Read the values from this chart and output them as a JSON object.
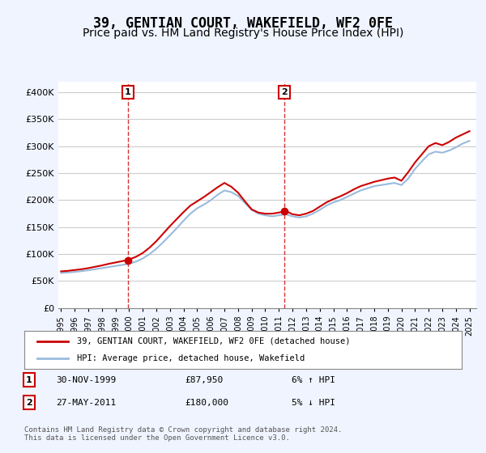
{
  "title": "39, GENTIAN COURT, WAKEFIELD, WF2 0FE",
  "subtitle": "Price paid vs. HM Land Registry's House Price Index (HPI)",
  "title_fontsize": 12,
  "subtitle_fontsize": 10,
  "ylabel": "",
  "xlabel": "",
  "ylim": [
    0,
    420000
  ],
  "yticks": [
    0,
    50000,
    100000,
    150000,
    200000,
    250000,
    300000,
    350000,
    400000
  ],
  "ytick_labels": [
    "£0",
    "£50K",
    "£100K",
    "£150K",
    "£200K",
    "£250K",
    "£300K",
    "£350K",
    "£400K"
  ],
  "bg_color": "#f0f4ff",
  "plot_bg_color": "#ffffff",
  "grid_color": "#cccccc",
  "line1_color": "#cc0000",
  "line2_color": "#99bbdd",
  "marker_color": "#cc0000",
  "vline_color": "#cc0000",
  "marker1_x": 1999.917,
  "marker1_y": 87950,
  "marker2_x": 2011.4,
  "marker2_y": 180000,
  "transaction1": {
    "num": "1",
    "date": "30-NOV-1999",
    "price": "£87,950",
    "hpi": "6% ↑ HPI"
  },
  "transaction2": {
    "num": "2",
    "date": "27-MAY-2011",
    "price": "£180,000",
    "hpi": "5% ↓ HPI"
  },
  "legend1": "39, GENTIAN COURT, WAKEFIELD, WF2 0FE (detached house)",
  "legend2": "HPI: Average price, detached house, Wakefield",
  "footer": "Contains HM Land Registry data © Crown copyright and database right 2024.\nThis data is licensed under the Open Government Licence v3.0.",
  "hpi_x": [
    1995,
    1995.5,
    1996,
    1996.5,
    1997,
    1997.5,
    1998,
    1998.5,
    1999,
    1999.5,
    2000,
    2000.5,
    2001,
    2001.5,
    2002,
    2002.5,
    2003,
    2003.5,
    2004,
    2004.5,
    2005,
    2005.5,
    2006,
    2006.5,
    2007,
    2007.5,
    2008,
    2008.5,
    2009,
    2009.5,
    2010,
    2010.5,
    2011,
    2011.5,
    2012,
    2012.5,
    2013,
    2013.5,
    2014,
    2014.5,
    2015,
    2015.5,
    2016,
    2016.5,
    2017,
    2017.5,
    2018,
    2018.5,
    2019,
    2019.5,
    2020,
    2020.5,
    2021,
    2021.5,
    2022,
    2022.5,
    2023,
    2023.5,
    2024,
    2024.5,
    2025
  ],
  "hpi_y": [
    65000,
    66000,
    67000,
    68500,
    70000,
    72000,
    74000,
    76000,
    78000,
    80000,
    82000,
    86000,
    92000,
    100000,
    110000,
    122000,
    135000,
    148000,
    162000,
    175000,
    185000,
    192000,
    200000,
    210000,
    218000,
    215000,
    208000,
    195000,
    182000,
    175000,
    172000,
    170000,
    172000,
    174000,
    170000,
    168000,
    170000,
    175000,
    182000,
    190000,
    196000,
    200000,
    206000,
    212000,
    218000,
    222000,
    226000,
    228000,
    230000,
    232000,
    228000,
    240000,
    258000,
    272000,
    285000,
    290000,
    288000,
    292000,
    298000,
    305000,
    310000
  ],
  "prop_x": [
    1995,
    1995.5,
    1996,
    1996.5,
    1997,
    1997.5,
    1998,
    1998.5,
    1999,
    1999.5,
    2000,
    2000.5,
    2001,
    2001.5,
    2002,
    2002.5,
    2003,
    2003.5,
    2004,
    2004.5,
    2005,
    2005.5,
    2006,
    2006.5,
    2007,
    2007.5,
    2008,
    2008.5,
    2009,
    2009.5,
    2010,
    2010.5,
    2011,
    2011.5,
    2012,
    2012.5,
    2013,
    2013.5,
    2014,
    2014.5,
    2015,
    2015.5,
    2016,
    2016.5,
    2017,
    2017.5,
    2018,
    2018.5,
    2019,
    2019.5,
    2020,
    2020.5,
    2021,
    2021.5,
    2022,
    2022.5,
    2023,
    2023.5,
    2024,
    2024.5,
    2025
  ],
  "prop_y": [
    68000,
    69000,
    70500,
    72000,
    74000,
    76500,
    79000,
    82000,
    84500,
    87000,
    90000,
    95000,
    102000,
    112000,
    124000,
    138000,
    152000,
    165000,
    178000,
    190000,
    198000,
    206000,
    215000,
    224000,
    232000,
    225000,
    214000,
    198000,
    183000,
    177000,
    175000,
    175000,
    177000,
    180000,
    174000,
    172000,
    175000,
    180000,
    188000,
    196000,
    202000,
    207000,
    213000,
    220000,
    226000,
    230000,
    234000,
    237000,
    240000,
    242000,
    236000,
    252000,
    270000,
    285000,
    300000,
    306000,
    302000,
    308000,
    316000,
    322000,
    328000
  ],
  "xticks": [
    1995,
    1996,
    1997,
    1998,
    1999,
    2000,
    2001,
    2002,
    2003,
    2004,
    2005,
    2006,
    2007,
    2008,
    2009,
    2010,
    2011,
    2012,
    2013,
    2014,
    2015,
    2016,
    2017,
    2018,
    2019,
    2020,
    2021,
    2022,
    2023,
    2024,
    2025
  ]
}
